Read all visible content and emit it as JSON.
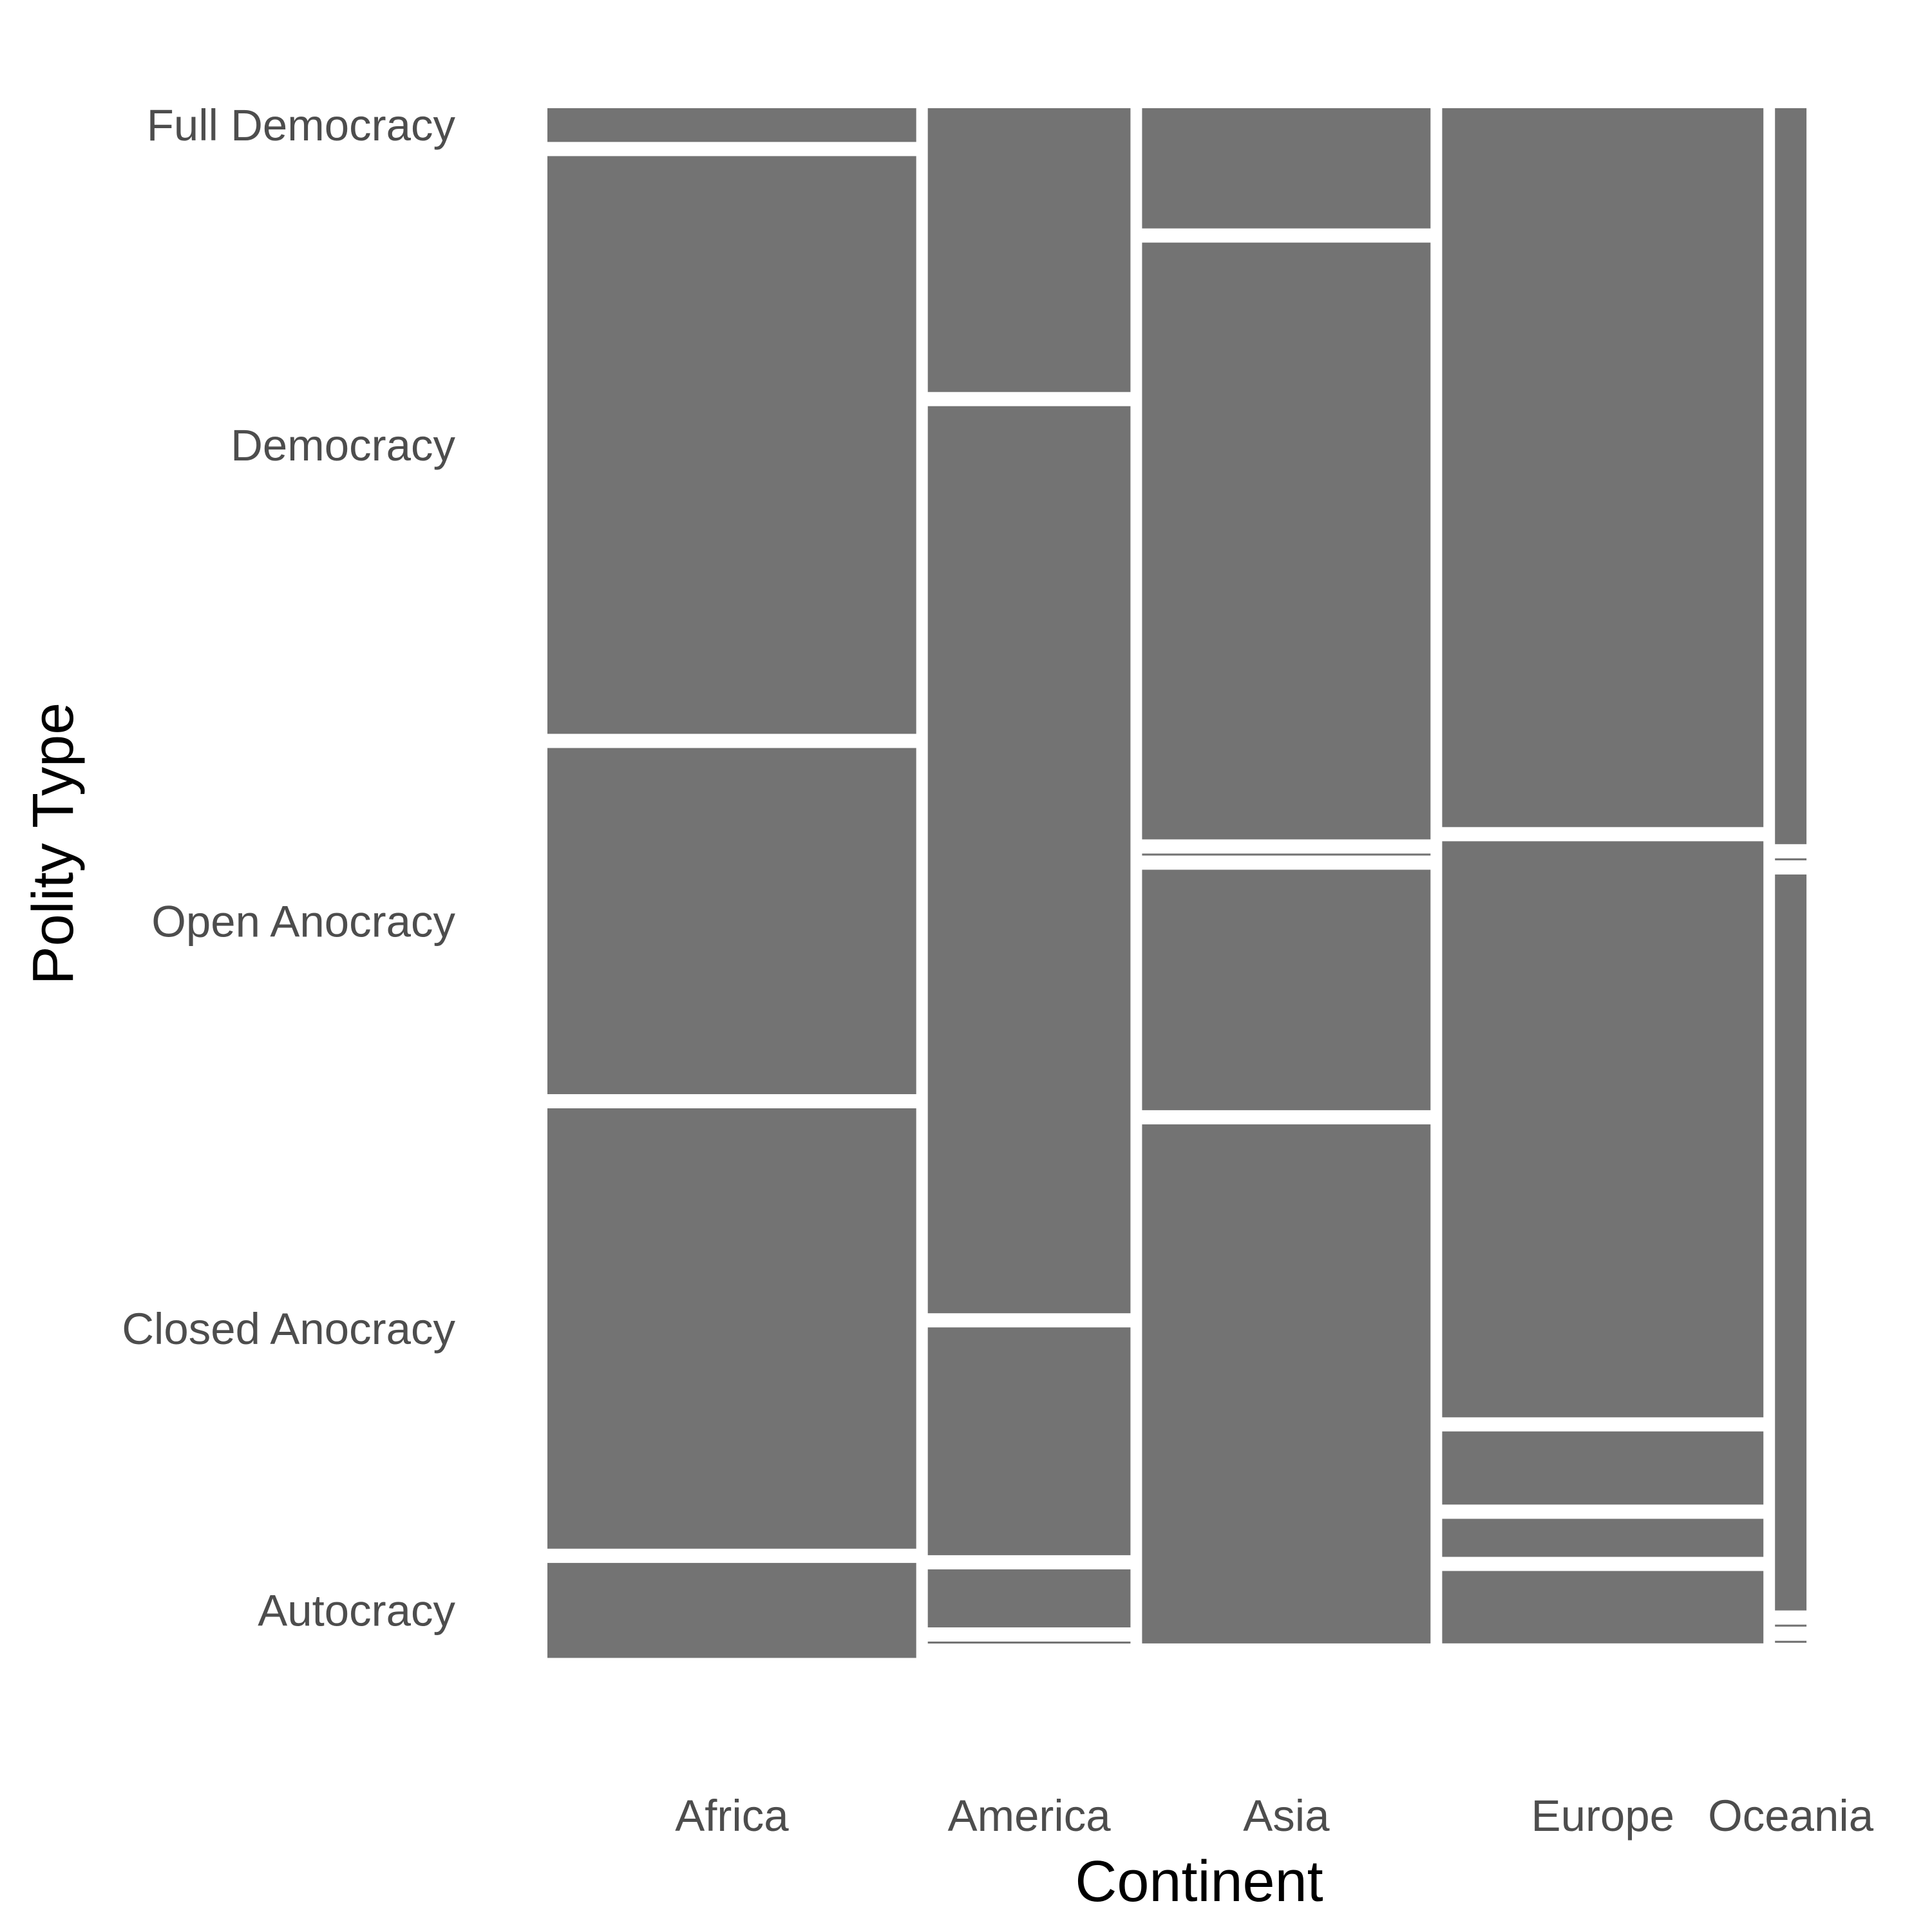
{
  "chart_data": {
    "type": "mosaic",
    "xlabel": "Continent",
    "ylabel": "Polity Type",
    "categories": [
      "Africa",
      "America",
      "Asia",
      "Europe",
      "Oceania"
    ],
    "x_shares": [
      0.2937,
      0.1614,
      0.2297,
      0.2558,
      0.0251
    ],
    "levels": [
      "Full Democracy",
      "Democracy",
      "Open Anocracy",
      "Closed Anocracy",
      "Autocracy"
    ],
    "level_tick_labels": [
      "Full Democracy",
      "Democracy",
      "Open Anocracy",
      "Closed Anocracy",
      "Autocracy"
    ],
    "proportions": [
      {
        "name": "Africa",
        "values": [
          0.0221,
          0.3782,
          0.2266,
          0.2883,
          0.0622
        ]
      },
      {
        "name": "America",
        "values": [
          0.1858,
          0.5938,
          0.1491,
          0.038,
          0.0013
        ]
      },
      {
        "name": "Asia",
        "values": [
          0.0787,
          0.3907,
          0.0013,
          0.1574,
          0.3398
        ]
      },
      {
        "name": "Europe",
        "values": [
          0.4706,
          0.3771,
          0.0479,
          0.0249,
          0.0474
        ]
      },
      {
        "name": "Oceania",
        "values": [
          0.4818,
          0.0013,
          0.4818,
          0.0013,
          0.0013
        ]
      }
    ],
    "fill_color": "#737373",
    "background": "#ffffff",
    "grid": false,
    "legend": "none"
  }
}
